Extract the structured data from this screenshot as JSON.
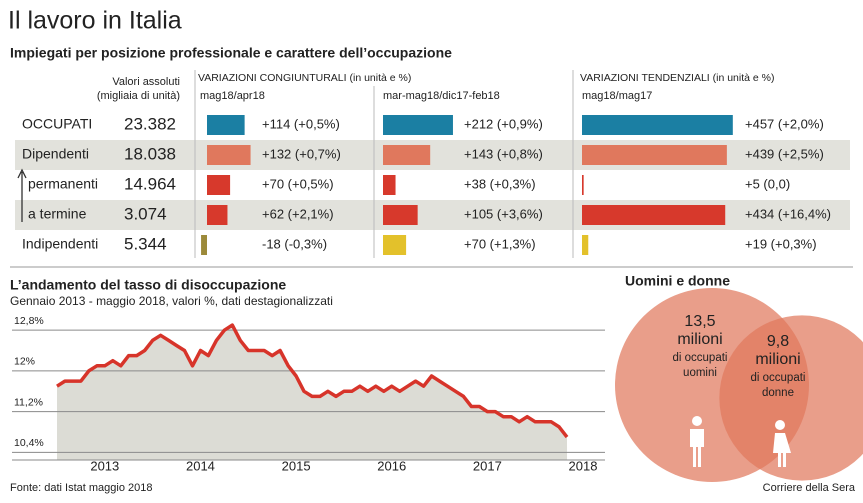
{
  "title": "Il lavoro in Italia",
  "subtitle": "Impiegati per posizione professionale e carattere dell’occupazione",
  "table": {
    "header": [
      "Valori assoluti",
      "(migliaia di unità)"
    ],
    "rows": [
      {
        "label": "OCCUPATI",
        "value": "23.382"
      },
      {
        "label": "Dipendenti",
        "value": "18.038"
      },
      {
        "label": "permanenti",
        "value": "14.964"
      },
      {
        "label": "a termine",
        "value": "3.074"
      },
      {
        "label": "Indipendenti",
        "value": "5.344"
      }
    ]
  },
  "chart_data": [
    {
      "type": "hbar",
      "title": "VARIAZIONI CONGIUNTURALI (in unità e %)",
      "subtitle": "mag18/apr18",
      "values": [
        114,
        132,
        70,
        62,
        -18
      ],
      "value_labels": [
        "+114 (+0,5%)",
        "+132 (+0,7%)",
        "+70 (+0,5%)",
        "+62 (+2,1%)",
        "-18 (-0,3%)"
      ],
      "colors": [
        "#1b7fa3",
        "#e0785d",
        "#d7392c",
        "#d7392c",
        "#9c8a3a"
      ],
      "xlim": [
        0,
        500
      ]
    },
    {
      "type": "hbar",
      "subtitle": "mar-mag18/dic17-feb18",
      "values": [
        212,
        143,
        38,
        105,
        70
      ],
      "value_labels": [
        "+212 (+0,9%)",
        "+143 (+0,8%)",
        "+38 (+0,3%)",
        "+105 (+3,6%)",
        "+70 (+1,3%)"
      ],
      "colors": [
        "#1b7fa3",
        "#e0785d",
        "#d7392c",
        "#d7392c",
        "#e3c12b"
      ],
      "xlim": [
        0,
        500
      ]
    },
    {
      "type": "hbar",
      "title": "VARIAZIONI TENDENZIALI (in unità e %)",
      "subtitle": "mag18/mag17",
      "values": [
        457,
        439,
        5,
        434,
        19
      ],
      "value_labels": [
        "+457 (+2,0%)",
        "+439 (+2,5%)",
        "+5 (0,0)",
        "+434 (+16,4%)",
        "+19 (+0,3%)"
      ],
      "colors": [
        "#1b7fa3",
        "#e0785d",
        "#d7392c",
        "#d7392c",
        "#e3c12b"
      ],
      "xlim": [
        0,
        500
      ]
    },
    {
      "type": "line",
      "title": "L’andamento del tasso di disoccupazione",
      "subtitle": "Gennaio 2013 - maggio 2018, valori %, dati destagionalizzati",
      "color": "#d7342a",
      "area_color": "#dcdcd5",
      "x": [
        2013,
        2013.083,
        2013.167,
        2013.25,
        2013.333,
        2013.417,
        2013.5,
        2013.583,
        2013.667,
        2013.75,
        2013.833,
        2013.917,
        2014,
        2014.083,
        2014.167,
        2014.25,
        2014.333,
        2014.417,
        2014.5,
        2014.583,
        2014.667,
        2014.75,
        2014.833,
        2014.917,
        2015,
        2015.083,
        2015.167,
        2015.25,
        2015.333,
        2015.417,
        2015.5,
        2015.583,
        2015.667,
        2015.75,
        2015.833,
        2015.917,
        2016,
        2016.083,
        2016.167,
        2016.25,
        2016.333,
        2016.417,
        2016.5,
        2016.583,
        2016.667,
        2016.75,
        2016.833,
        2016.917,
        2017,
        2017.083,
        2017.167,
        2017.25,
        2017.333,
        2017.417,
        2017.5,
        2017.583,
        2017.667,
        2017.75,
        2017.833,
        2017.917,
        2018,
        2018.083,
        2018.167,
        2018.25,
        2018.333
      ],
      "values": [
        11.7,
        11.8,
        11.8,
        11.8,
        12.0,
        12.1,
        12.1,
        12.2,
        12.1,
        12.3,
        12.3,
        12.4,
        12.6,
        12.7,
        12.6,
        12.5,
        12.4,
        12.1,
        12.4,
        12.3,
        12.6,
        12.8,
        12.9,
        12.6,
        12.4,
        12.4,
        12.4,
        12.3,
        12.4,
        12.1,
        11.9,
        11.6,
        11.5,
        11.5,
        11.6,
        11.5,
        11.6,
        11.6,
        11.7,
        11.6,
        11.7,
        11.6,
        11.7,
        11.6,
        11.7,
        11.8,
        11.7,
        11.9,
        11.8,
        11.7,
        11.6,
        11.5,
        11.3,
        11.3,
        11.2,
        11.2,
        11.1,
        11.1,
        11.0,
        11.1,
        11.0,
        11.0,
        11.0,
        10.9,
        10.7
      ],
      "xlim": [
        2013,
        2018.73
      ],
      "ylim": [
        10.25,
        13.0
      ],
      "yticks": [
        {
          "value": 12.8,
          "label": "12,8%"
        },
        {
          "value": 12,
          "label": "12%"
        },
        {
          "value": 11.2,
          "label": "11,2%"
        },
        {
          "value": 10.4,
          "label": "10,4%"
        }
      ],
      "xticks": [
        {
          "value": 2013.5,
          "label": "2013"
        },
        {
          "value": 2014.5,
          "label": "2014"
        },
        {
          "value": 2015.5,
          "label": "2015"
        },
        {
          "value": 2016.5,
          "label": "2016"
        },
        {
          "value": 2017.5,
          "label": "2017"
        },
        {
          "value": 2018.5,
          "label": "2018"
        }
      ],
      "grid": true
    },
    {
      "type": "venn",
      "title": "Uomini e donne",
      "series": [
        {
          "name": "uomini",
          "value": 13.5,
          "value_label": "13,5",
          "unit": "milioni",
          "desc": "di occupati",
          "color": "#e0785d"
        },
        {
          "name": "donne",
          "value": 9.8,
          "value_label": "9,8",
          "unit": "milioni",
          "desc": "di occupati",
          "color": "#e0785d"
        }
      ]
    }
  ],
  "footer": {
    "source": "Fonte: dati Istat maggio 2018",
    "brand": "Corriere della Sera"
  }
}
